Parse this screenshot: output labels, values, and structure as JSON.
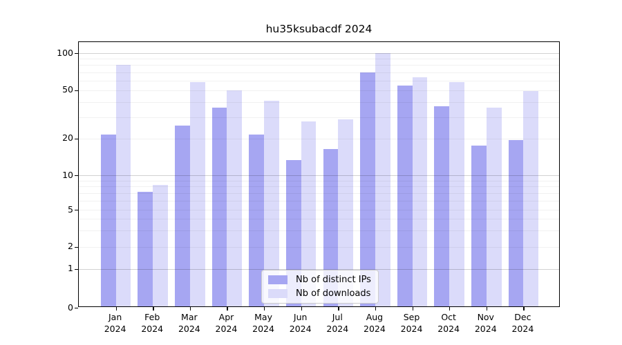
{
  "chart_data": {
    "type": "bar",
    "title": "hu35ksubacdf 2024",
    "categories": [
      "Jan",
      "Feb",
      "Mar",
      "Apr",
      "May",
      "Jun",
      "Jul",
      "Aug",
      "Sep",
      "Oct",
      "Nov",
      "Dec"
    ],
    "x_year_label": "2024",
    "series": [
      {
        "name": "Nb of distinct IPs",
        "color": "#a6a6f2",
        "values": [
          21,
          7,
          25,
          35,
          21,
          13,
          16,
          68,
          53,
          36,
          17,
          19
        ]
      },
      {
        "name": "Nb of downloads",
        "color": "#dbdbfa",
        "values": [
          78,
          8,
          57,
          49,
          40,
          27,
          28,
          97,
          62,
          57,
          35,
          48
        ]
      }
    ],
    "yticks": [
      100,
      50,
      20,
      10,
      5,
      2,
      1,
      0
    ],
    "ylim": [
      0,
      120
    ],
    "scale": "symlog",
    "grid": true,
    "legend_position": "lower center"
  }
}
